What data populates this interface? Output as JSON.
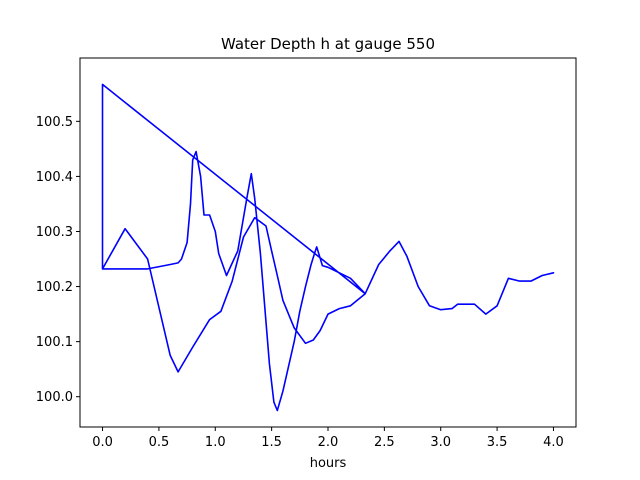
{
  "chart_data": {
    "type": "line",
    "title": "Water Depth h at gauge 550",
    "xlabel": "hours",
    "ylabel": "",
    "xlim": [
      -0.2,
      4.2
    ],
    "ylim": [
      99.945,
      100.615
    ],
    "xticks": [
      0.0,
      0.5,
      1.0,
      1.5,
      2.0,
      2.5,
      3.0,
      3.5,
      4.0
    ],
    "xtick_labels": [
      "0.0",
      "0.5",
      "1.0",
      "1.5",
      "2.0",
      "2.5",
      "3.0",
      "3.5",
      "4.0"
    ],
    "yticks": [
      100.0,
      100.1,
      100.2,
      100.3,
      100.4,
      100.5
    ],
    "ytick_labels": [
      "100.0",
      "100.1",
      "100.2",
      "100.3",
      "100.4",
      "100.5"
    ],
    "grid": false,
    "series": [
      {
        "color": "#0000ff",
        "x": [
          0.0,
          0.0,
          0.0,
          2.33,
          2.2,
          2.1,
          2.0,
          1.95,
          1.9,
          1.88,
          1.85,
          1.8,
          1.75,
          1.7,
          1.6,
          1.55,
          1.52,
          1.48,
          1.4,
          1.35,
          1.32,
          1.28,
          1.2,
          1.1,
          1.03,
          1.0,
          0.95,
          0.9,
          0.87,
          0.83,
          0.8,
          0.78,
          0.75,
          0.7,
          0.67,
          0.6,
          0.4,
          0.3,
          0.2,
          0.1,
          0.0,
          0.0,
          0.2,
          0.4,
          0.6,
          0.67,
          0.8,
          0.95,
          1.05,
          1.15,
          1.25,
          1.35,
          1.45,
          1.5,
          1.55,
          1.6,
          1.7,
          1.8,
          1.87,
          1.93,
          2.0,
          2.1,
          2.2,
          2.33,
          2.45,
          2.55,
          2.63,
          2.7,
          2.8,
          2.9,
          3.0,
          3.1,
          3.15,
          3.3,
          3.4,
          3.5,
          3.6,
          3.7,
          3.8,
          3.9,
          4.0
        ],
        "y": [
          100.232,
          100.567,
          100.567,
          100.187,
          100.215,
          100.225,
          100.235,
          100.238,
          100.272,
          100.26,
          100.24,
          100.2,
          100.155,
          100.1,
          100.01,
          99.975,
          99.99,
          100.06,
          100.26,
          100.36,
          100.405,
          100.36,
          100.265,
          100.22,
          100.26,
          100.3,
          100.33,
          100.33,
          100.4,
          100.445,
          100.43,
          100.35,
          100.28,
          100.25,
          100.243,
          100.24,
          100.232,
          100.232,
          100.232,
          100.232,
          100.232,
          100.232,
          100.305,
          100.25,
          100.075,
          100.045,
          100.09,
          100.14,
          100.155,
          100.21,
          100.29,
          100.325,
          100.31,
          100.265,
          100.22,
          100.175,
          100.125,
          100.097,
          100.103,
          100.12,
          100.15,
          100.16,
          100.165,
          100.187,
          100.24,
          100.265,
          100.282,
          100.255,
          100.2,
          100.165,
          100.158,
          100.16,
          100.168,
          100.168,
          100.15,
          100.165,
          100.215,
          100.21,
          100.21,
          100.22,
          100.225
        ]
      }
    ]
  }
}
